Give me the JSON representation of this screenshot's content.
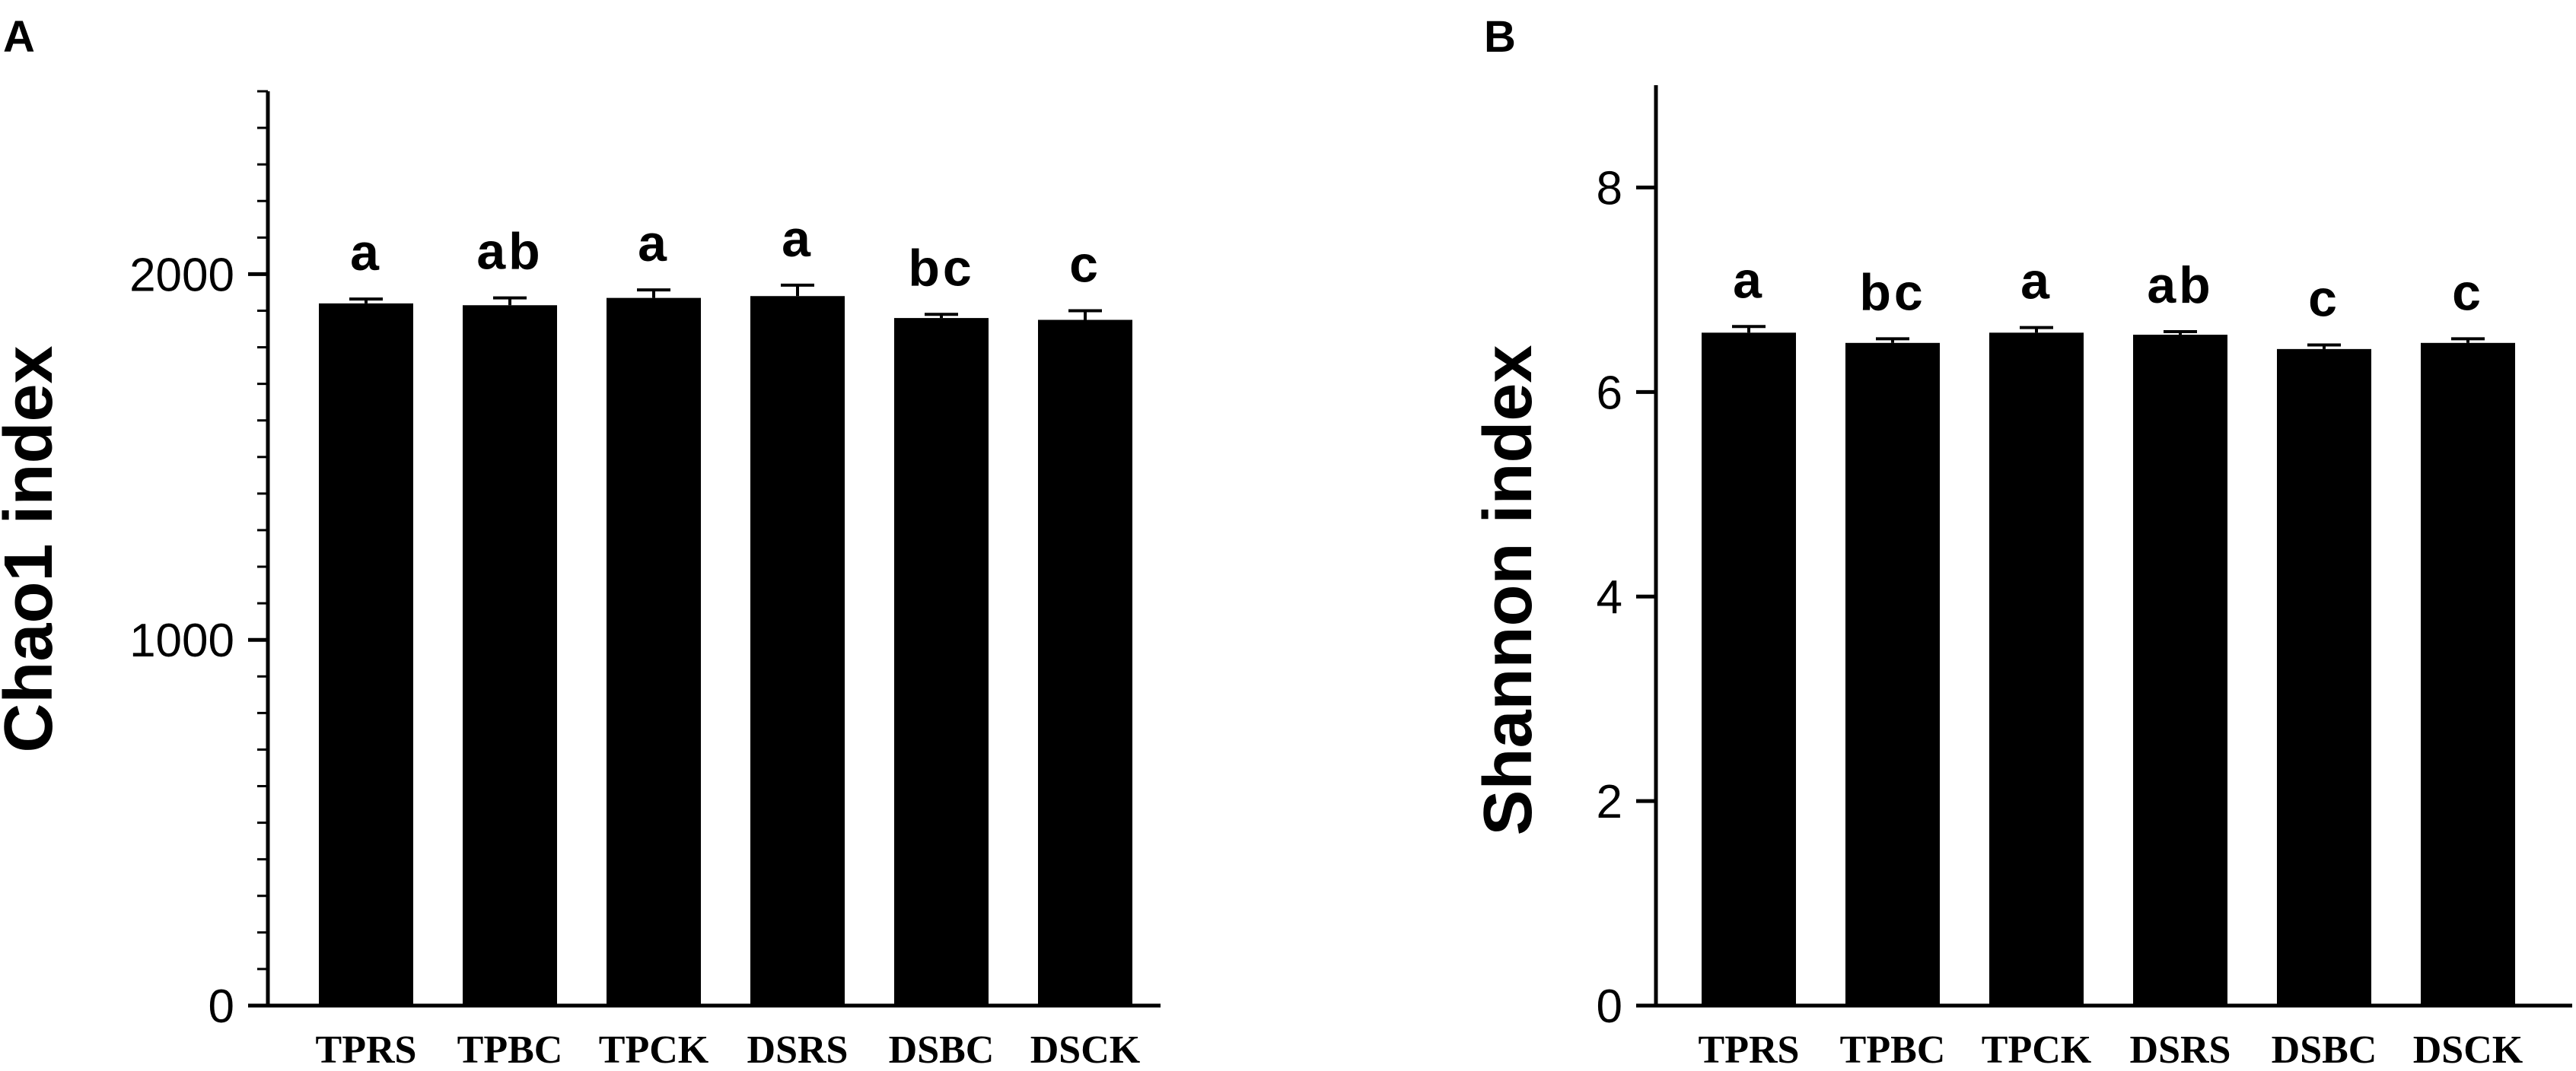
{
  "chart_data": [
    {
      "panel": "A",
      "type": "bar",
      "ylabel": "Chao1 index",
      "categories": [
        "TPRS",
        "TPBC",
        "TPCK",
        "DSRS",
        "DSBC",
        "DSCK"
      ],
      "values": [
        1920,
        1915,
        1935,
        1940,
        1880,
        1875
      ],
      "errors": [
        12,
        20,
        22,
        30,
        10,
        25
      ],
      "significance": [
        "a",
        "ab",
        "a",
        "a",
        "bc",
        "c"
      ],
      "ylim": [
        0,
        2500
      ],
      "yticks": [
        0,
        1000,
        2000
      ],
      "ytick_labels": [
        "0",
        "1000",
        "2000"
      ],
      "minor_tick_step": 100,
      "bar_color": "#000000"
    },
    {
      "panel": "B",
      "type": "bar",
      "ylabel": "Shannon index",
      "categories": [
        "TPRS",
        "TPBC",
        "TPCK",
        "DSRS",
        "DSBC",
        "DSCK"
      ],
      "values": [
        6.58,
        6.48,
        6.58,
        6.56,
        6.42,
        6.48
      ],
      "errors": [
        0.06,
        0.04,
        0.05,
        0.03,
        0.04,
        0.04
      ],
      "significance": [
        "a",
        "bc",
        "a",
        "ab",
        "c",
        "c"
      ],
      "ylim": [
        0,
        9
      ],
      "yticks": [
        0,
        2,
        4,
        6,
        8
      ],
      "ytick_labels": [
        "0",
        "2",
        "4",
        "6",
        "8"
      ],
      "minor_tick_step": 0,
      "bar_color": "#000000"
    }
  ]
}
